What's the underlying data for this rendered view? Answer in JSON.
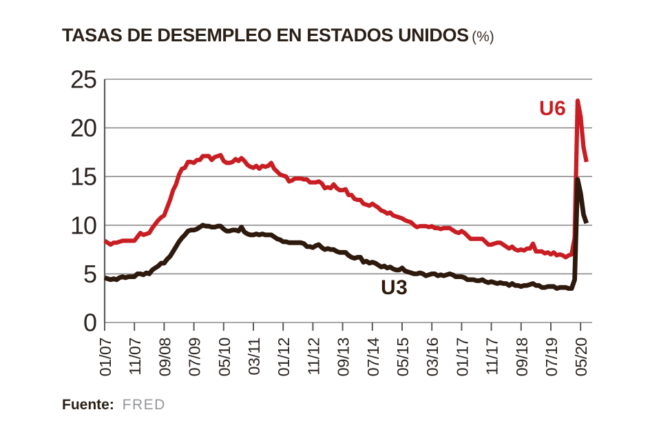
{
  "title": {
    "text": "TASAS DE DESEMPLEO EN ESTADOS UNIDOS",
    "suffix": "(%)"
  },
  "source": {
    "label": "Fuente:",
    "value": "FRED"
  },
  "colors": {
    "u6_line": "#c81e23",
    "u3_line": "#2e190d",
    "grid": "#8a8a8a",
    "axis": "#58595b",
    "text": "#2b2421",
    "title_text": "#2b2017",
    "source_value": "#939598"
  },
  "chart_data": {
    "type": "line",
    "title": "TASAS DE DESEMPLEO EN ESTADOS UNIDOS (%)",
    "xlabel": "",
    "ylabel": "",
    "ylim": [
      0,
      25
    ],
    "y_ticks": [
      0,
      5,
      10,
      15,
      20,
      25
    ],
    "grid": true,
    "legend_position": "inline-annotations",
    "x_frequency": "monthly",
    "tick_every_months": 10,
    "x_tick_labels": [
      "01/07",
      "11/07",
      "09/08",
      "07/09",
      "05/10",
      "03/11",
      "01/12",
      "11/12",
      "09/13",
      "07/14",
      "05/15",
      "03/16",
      "01/17",
      "11/17",
      "09/18",
      "07/19",
      "05/20"
    ],
    "series": [
      {
        "name": "U6",
        "color": "#c81e23",
        "values": [
          8.4,
          8.2,
          8.0,
          8.2,
          8.2,
          8.3,
          8.4,
          8.4,
          8.4,
          8.4,
          8.4,
          8.8,
          9.2,
          9.0,
          9.1,
          9.2,
          9.7,
          10.1,
          10.5,
          10.8,
          11.0,
          11.8,
          12.6,
          13.6,
          14.2,
          15.2,
          15.8,
          15.9,
          16.5,
          16.5,
          16.4,
          16.7,
          16.7,
          17.1,
          17.1,
          17.1,
          16.7,
          17.0,
          17.1,
          17.2,
          16.6,
          16.4,
          16.4,
          16.5,
          16.8,
          16.6,
          16.9,
          16.6,
          16.2,
          16.0,
          15.9,
          16.1,
          15.8,
          16.1,
          16.0,
          16.1,
          16.4,
          15.8,
          15.5,
          15.2,
          15.1,
          15.0,
          14.5,
          14.6,
          14.8,
          14.8,
          14.8,
          14.7,
          14.7,
          14.4,
          14.4,
          14.4,
          14.5,
          14.3,
          13.8,
          13.9,
          13.8,
          14.2,
          13.8,
          13.6,
          13.6,
          13.7,
          13.1,
          13.1,
          12.7,
          12.6,
          12.6,
          12.2,
          12.1,
          12.0,
          12.2,
          12.0,
          11.8,
          11.5,
          11.4,
          11.2,
          11.3,
          11.0,
          10.9,
          10.8,
          10.7,
          10.5,
          10.4,
          10.3,
          10.0,
          9.8,
          9.9,
          9.9,
          9.9,
          9.8,
          9.9,
          9.7,
          9.7,
          9.6,
          9.7,
          9.7,
          9.7,
          9.5,
          9.3,
          9.2,
          9.4,
          9.2,
          8.9,
          8.6,
          8.6,
          8.6,
          8.6,
          8.6,
          8.3,
          8.0,
          8.0,
          8.1,
          8.2,
          8.2,
          8.0,
          7.8,
          7.6,
          7.8,
          7.5,
          7.4,
          7.5,
          7.4,
          7.6,
          7.6,
          8.1,
          7.3,
          7.3,
          7.3,
          7.1,
          7.2,
          7.0,
          7.2,
          6.9,
          7.0,
          6.9,
          6.7,
          6.9,
          7.0,
          8.7,
          22.8,
          21.2,
          18.0,
          16.5
        ]
      },
      {
        "name": "U3",
        "color": "#2e190d",
        "values": [
          4.6,
          4.5,
          4.4,
          4.5,
          4.4,
          4.6,
          4.7,
          4.6,
          4.7,
          4.7,
          4.7,
          5.0,
          5.0,
          4.9,
          5.1,
          5.0,
          5.4,
          5.6,
          5.8,
          6.1,
          6.1,
          6.5,
          6.8,
          7.3,
          7.8,
          8.3,
          8.7,
          9.0,
          9.4,
          9.5,
          9.5,
          9.6,
          9.8,
          10.0,
          9.9,
          9.9,
          9.8,
          9.8,
          9.9,
          9.9,
          9.6,
          9.4,
          9.4,
          9.5,
          9.5,
          9.4,
          9.8,
          9.3,
          9.1,
          9.0,
          9.0,
          9.1,
          9.0,
          9.1,
          9.0,
          9.0,
          9.0,
          8.8,
          8.6,
          8.5,
          8.3,
          8.3,
          8.2,
          8.2,
          8.2,
          8.2,
          8.2,
          8.1,
          7.8,
          7.8,
          7.7,
          7.9,
          8.0,
          7.7,
          7.5,
          7.6,
          7.5,
          7.5,
          7.3,
          7.2,
          7.2,
          7.2,
          6.9,
          6.7,
          6.6,
          6.7,
          6.7,
          6.2,
          6.3,
          6.1,
          6.2,
          6.1,
          5.9,
          5.7,
          5.8,
          5.6,
          5.7,
          5.5,
          5.4,
          5.4,
          5.6,
          5.3,
          5.2,
          5.1,
          5.0,
          5.0,
          5.1,
          5.0,
          4.8,
          4.9,
          5.0,
          5.0,
          4.8,
          4.9,
          4.8,
          4.9,
          5.0,
          4.9,
          4.7,
          4.7,
          4.7,
          4.6,
          4.4,
          4.4,
          4.4,
          4.3,
          4.3,
          4.4,
          4.2,
          4.1,
          4.2,
          4.1,
          4.0,
          4.1,
          4.0,
          4.0,
          3.8,
          4.0,
          3.8,
          3.8,
          3.7,
          3.8,
          3.8,
          3.9,
          4.0,
          3.8,
          3.8,
          3.6,
          3.6,
          3.7,
          3.7,
          3.7,
          3.5,
          3.6,
          3.6,
          3.6,
          3.5,
          3.5,
          4.4,
          14.7,
          13.3,
          11.1,
          10.2
        ]
      }
    ],
    "annotations": [
      {
        "text": "U6",
        "color": "#c81e23"
      },
      {
        "text": "U3",
        "color": "#2e190d"
      }
    ]
  }
}
